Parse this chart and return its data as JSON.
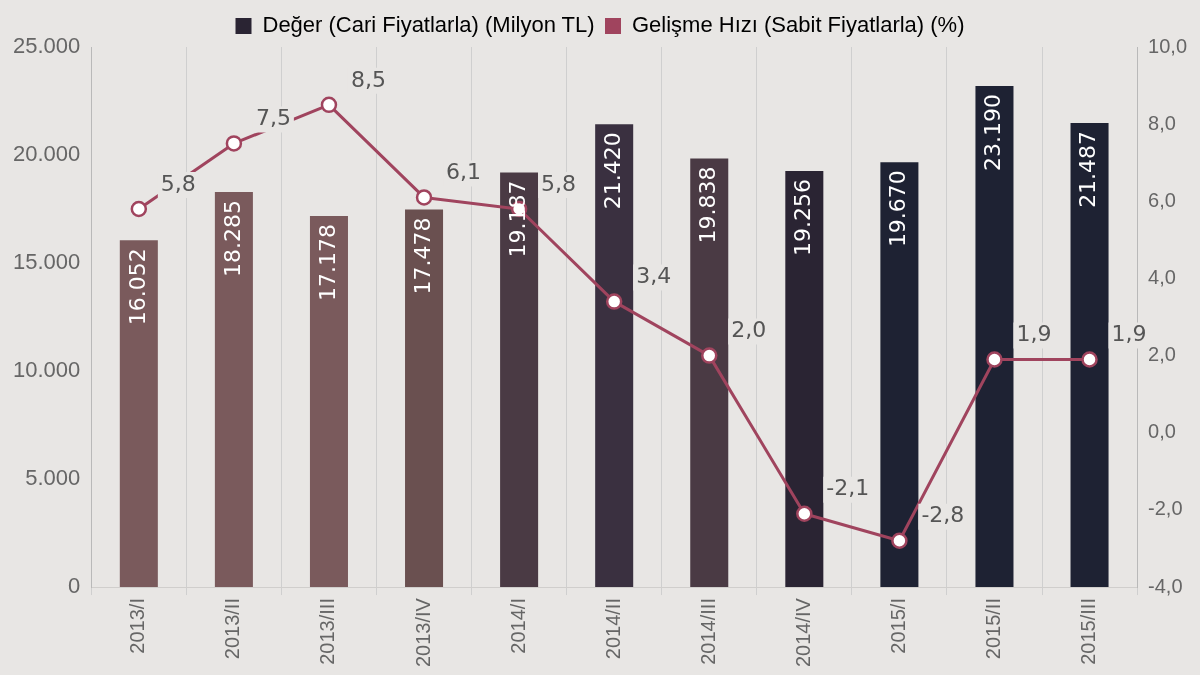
{
  "chart_data": {
    "type": "bar",
    "categories": [
      "2013/I",
      "2013/II",
      "2013/III",
      "2013/IV",
      "2014/I",
      "2014/II",
      "2014/III",
      "2014/IV",
      "2015/I",
      "2015/II",
      "2015/III"
    ],
    "series": [
      {
        "name": "Değer (Cari Fiyatlarla) (Milyon TL)",
        "color": "#2a2433",
        "colors": [
          "#7a5a5c",
          "#7a5a5c",
          "#7a5a5c",
          "#6a5050",
          "#4a3a44",
          "#3a3040",
          "#4a3a44",
          "#2a2433",
          "#1e2233",
          "#1e2233",
          "#1e2233"
        ],
        "values": [
          16052,
          18285,
          17178,
          17478,
          19187,
          21420,
          19838,
          19256,
          19670,
          23190,
          21487
        ],
        "value_labels": [
          "16.052",
          "18.285",
          "17.178",
          "17.478",
          "19.187",
          "21.420",
          "19.838",
          "19.256",
          "19.670",
          "23.190",
          "21.487"
        ]
      },
      {
        "name": "Gelişme Hızı (Sabit Fiyatlarla) (%)",
        "type": "line",
        "axis": "y2",
        "color": "#a0445e",
        "values": [
          5.8,
          7.5,
          8.5,
          6.1,
          5.8,
          3.4,
          2.0,
          -2.1,
          -2.8,
          1.9,
          1.9
        ],
        "value_labels": [
          "5,8",
          "7,5",
          "8,5",
          "6,1",
          "5,8",
          "3,4",
          "2,0",
          "-2,1",
          "-2,8",
          "1,9",
          "1,9"
        ]
      }
    ],
    "ylim": [
      0,
      25000
    ],
    "yticks": [
      {
        "value": 0,
        "label": "0"
      },
      {
        "value": 5000,
        "label": "5.000"
      },
      {
        "value": 10000,
        "label": "10.000"
      },
      {
        "value": 15000,
        "label": "15.000"
      },
      {
        "value": 20000,
        "label": "20.000"
      },
      {
        "value": 25000,
        "label": "25.000"
      }
    ],
    "y2lim": [
      -4,
      10
    ],
    "y2ticks": [
      {
        "value": -4,
        "label": "-4,0"
      },
      {
        "value": -2,
        "label": "-2,0"
      },
      {
        "value": 0,
        "label": "0,0"
      },
      {
        "value": 2,
        "label": "2,0"
      },
      {
        "value": 4,
        "label": "4,0"
      },
      {
        "value": 6,
        "label": "6,0"
      },
      {
        "value": 8,
        "label": "8,0"
      },
      {
        "value": 10,
        "label": "10,0"
      }
    ],
    "grid": "x",
    "legend": "top",
    "marker": "circle",
    "line_style": "solid"
  }
}
